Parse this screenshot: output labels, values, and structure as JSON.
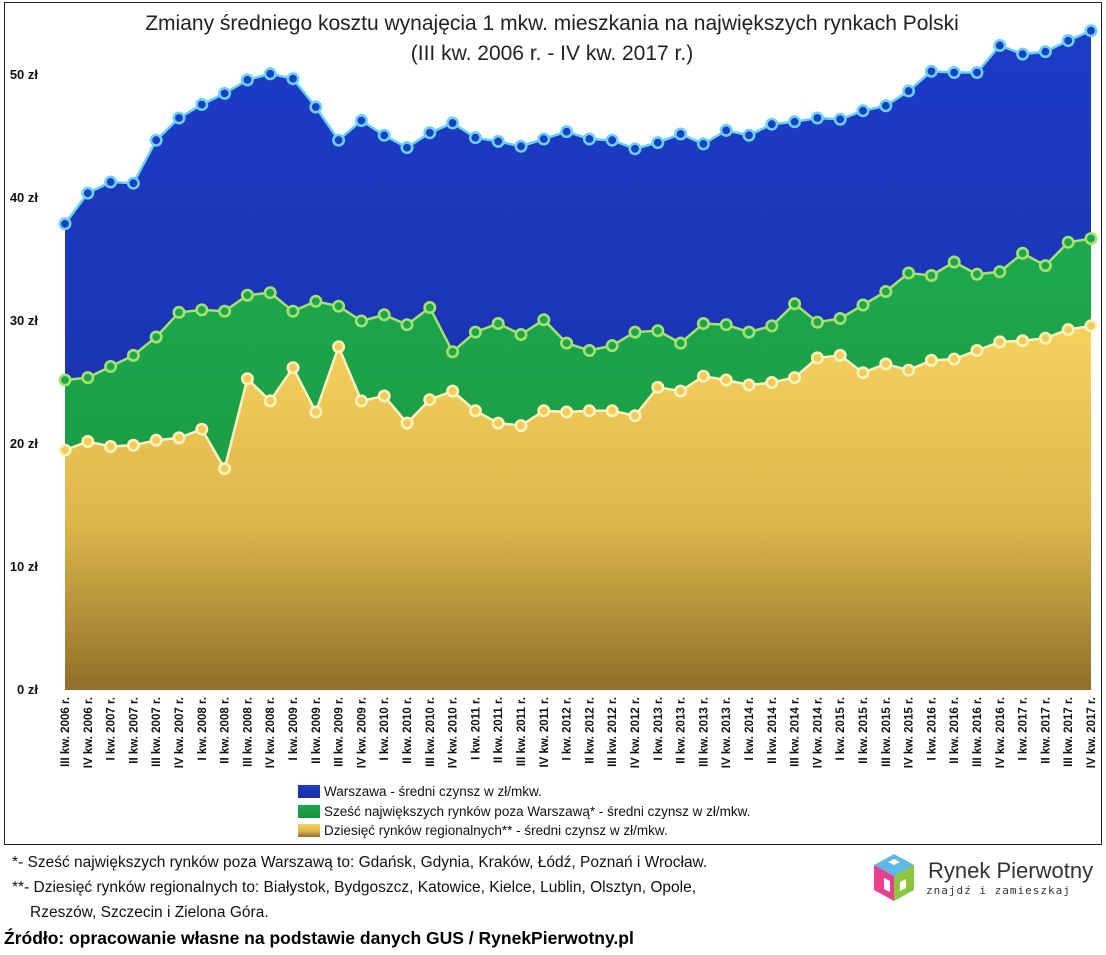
{
  "chart_data": {
    "type": "area",
    "title": "Zmiany średniego kosztu wynajęcia 1 mkw. mieszkania na największych rynkach Polski",
    "subtitle": "(III kw. 2006 r. - IV kw. 2017 r.)",
    "ylim": [
      0,
      55
    ],
    "yticks": [
      0,
      10,
      20,
      30,
      40,
      50
    ],
    "ytick_labels": [
      "0 zł",
      "10 zł",
      "20 zł",
      "30 zł",
      "40 zł",
      "50 zł"
    ],
    "categories": [
      "III kw. 2006 r.",
      "IV kw. 2006 r.",
      "I kw. 2007 r.",
      "II kw. 2007 r.",
      "III kw. 2007 r.",
      "IV kw. 2007 r.",
      "I kw. 2008 r.",
      "II kw. 2008 r.",
      "III kw. 2008 r.",
      "IV kw. 2008 r.",
      "I kw. 2009 r.",
      "II kw. 2009 r.",
      "III kw. 2009 r.",
      "IV kw. 2009 r.",
      "I kw. 2010 r.",
      "II kw. 2010 r.",
      "III kw. 2010 r.",
      "IV kw. 2010 r.",
      "I kw. 2011 r.",
      "II kw. 2011 r.",
      "III kw. 2011 r.",
      "IV kw. 2011 r.",
      "I kw. 2012 r.",
      "II kw. 2012 r.",
      "III kw. 2012 r.",
      "IV kw. 2012 r.",
      "I kw. 2013 r.",
      "II kw. 2013 r.",
      "III kw. 2013 r.",
      "IV kw. 2013 r.",
      "I kw. 2014 r.",
      "II kw. 2014 r.",
      "III kw. 2014 r.",
      "IV kw. 2014 r.",
      "I kw. 2015 r.",
      "II kw. 2015 r.",
      "III kw. 2015 r.",
      "IV kw. 2015 r.",
      "I kw. 2016 r.",
      "II kw. 2016 r.",
      "III kw. 2016 r.",
      "IV kw. 2016 r.",
      "I kw. 2017 r.",
      "II kw. 2017 r.",
      "III kw. 2017 r.",
      "IV kw. 2017 r."
    ],
    "series": [
      {
        "name": "Warszawa - średni czynsz w zł/mkw.",
        "color": "#1a3fc4",
        "marker": "#6ad0f5",
        "values": [
          37.9,
          40.4,
          41.3,
          41.2,
          44.7,
          46.5,
          47.6,
          48.5,
          49.6,
          50.1,
          49.7,
          47.4,
          44.7,
          46.3,
          45.1,
          44.1,
          45.3,
          46.1,
          44.9,
          44.6,
          44.2,
          44.8,
          45.4,
          44.8,
          44.7,
          44.0,
          44.5,
          45.2,
          44.4,
          45.5,
          45.1,
          46.0,
          46.2,
          46.5,
          46.4,
          47.1,
          47.5,
          48.7,
          50.3,
          50.2,
          50.2,
          52.4,
          51.7,
          51.9,
          52.8,
          53.6
        ]
      },
      {
        "name": "Sześć największych rynków poza Warszawą* - średni czynsz w zł/mkw.",
        "color": "#1aa84a",
        "marker": "#a8e070",
        "values": [
          25.2,
          25.4,
          26.3,
          27.2,
          28.7,
          30.7,
          30.9,
          30.8,
          32.1,
          32.3,
          30.8,
          31.6,
          31.2,
          30.0,
          30.5,
          29.7,
          31.1,
          27.5,
          29.1,
          29.8,
          28.9,
          30.1,
          28.2,
          27.6,
          28.0,
          29.1,
          29.2,
          28.2,
          29.8,
          29.7,
          29.1,
          29.6,
          31.4,
          29.9,
          30.2,
          31.3,
          32.4,
          33.9,
          33.7,
          34.8,
          33.8,
          34.0,
          35.5,
          34.5,
          36.4,
          36.7
        ]
      },
      {
        "name": "Dziesięć rynków regionalnych** - średni czynsz w zł/mkw.",
        "color": "#f2cc55",
        "marker": "#fdf2c0",
        "values": [
          19.5,
          20.2,
          19.8,
          19.9,
          20.3,
          20.5,
          21.2,
          18.0,
          25.3,
          23.5,
          26.2,
          22.6,
          27.9,
          23.5,
          23.9,
          21.7,
          23.6,
          24.3,
          22.7,
          21.7,
          21.5,
          22.7,
          22.6,
          22.7,
          22.7,
          22.3,
          24.6,
          24.3,
          25.5,
          25.2,
          24.8,
          25.0,
          25.4,
          27.0,
          27.2,
          25.8,
          26.5,
          26.0,
          26.8,
          26.9,
          27.6,
          28.3,
          28.4,
          28.6,
          29.3,
          29.6
        ]
      }
    ],
    "legend_position": "bottom"
  },
  "footnotes": {
    "line1": "*- Sześć największych rynków poza Warszawą to: Gdańsk, Gdynia, Kraków, Łódź, Poznań i Wrocław.",
    "line2": "**- Dziesięć rynków regionalnych to: Białystok, Bydgoszcz, Katowice, Kielce, Lublin, Olsztyn, Opole,",
    "line3": "Rzeszów, Szczecin i Zielona Góra."
  },
  "source": "Źródło: opracowanie własne na podstawie danych GUS / RynekPierwotny.pl",
  "logo": {
    "name": "Rynek Pierwotny",
    "tagline": "znajdź i zamieszkaj"
  }
}
